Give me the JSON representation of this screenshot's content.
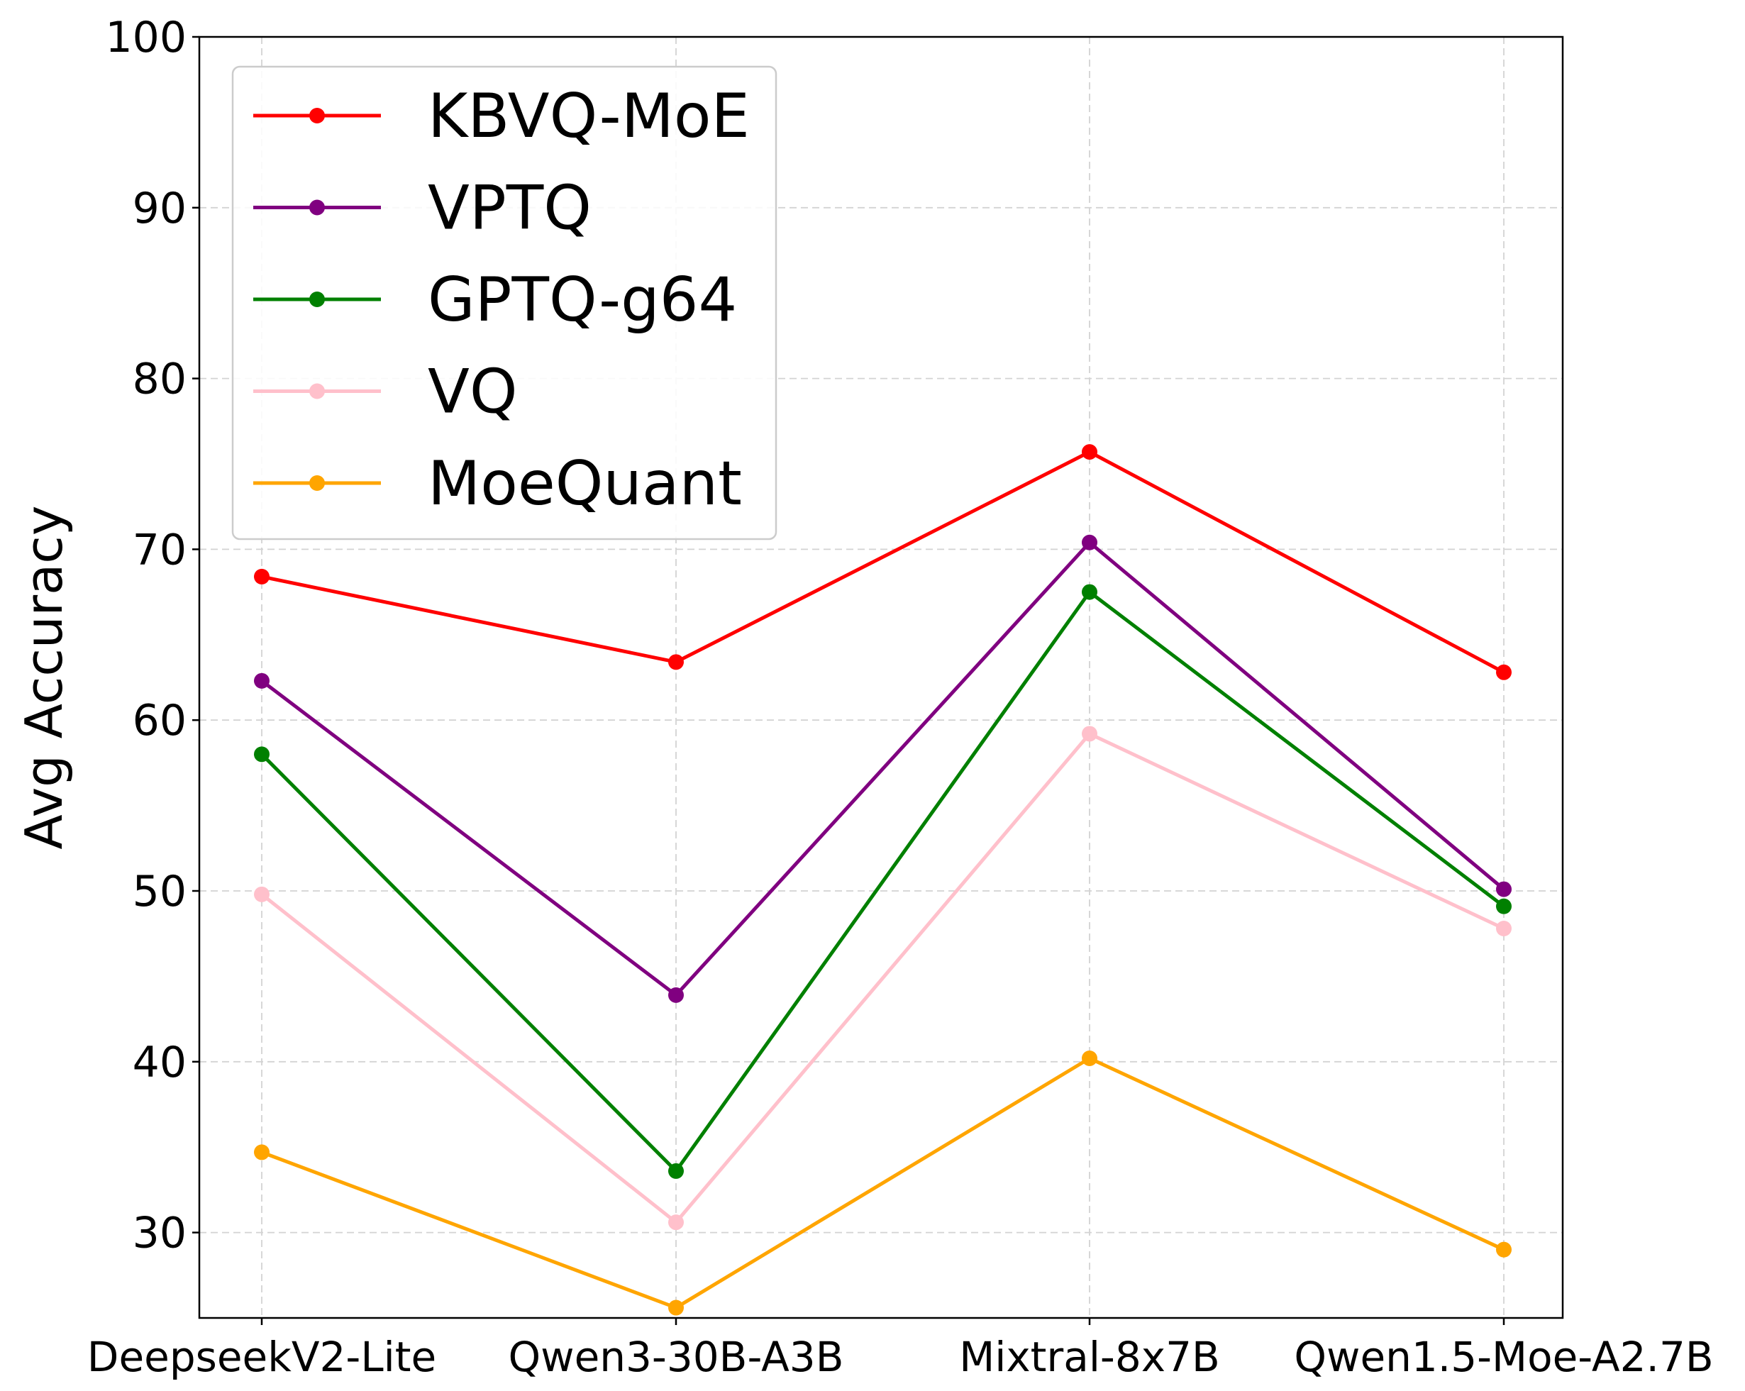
{
  "chart_data": {
    "type": "line",
    "title": "",
    "xlabel": "",
    "ylabel": "Avg Accuracy",
    "categories": [
      "DeepseekV2-Lite",
      "Qwen3-30B-A3B",
      "Mixtral-8x7B",
      "Qwen1.5-Moe-A2.7B"
    ],
    "ylim": [
      25,
      100
    ],
    "yticks": [
      30,
      40,
      50,
      60,
      70,
      80,
      90,
      100
    ],
    "grid": true,
    "legend_position": "top-left",
    "series": [
      {
        "name": "KBVQ-MoE",
        "color": "#ff0000",
        "values": [
          68.4,
          63.4,
          75.7,
          62.8
        ]
      },
      {
        "name": "VPTQ",
        "color": "#800080",
        "values": [
          62.3,
          43.9,
          70.4,
          50.1
        ]
      },
      {
        "name": "GPTQ-g64",
        "color": "#008000",
        "values": [
          58.0,
          33.6,
          67.5,
          49.1
        ]
      },
      {
        "name": "VQ",
        "color": "#ffc0cb",
        "values": [
          49.8,
          30.6,
          59.2,
          47.8
        ]
      },
      {
        "name": "MoeQuant",
        "color": "#ffa500",
        "values": [
          34.7,
          25.6,
          40.2,
          29.0
        ]
      }
    ]
  }
}
